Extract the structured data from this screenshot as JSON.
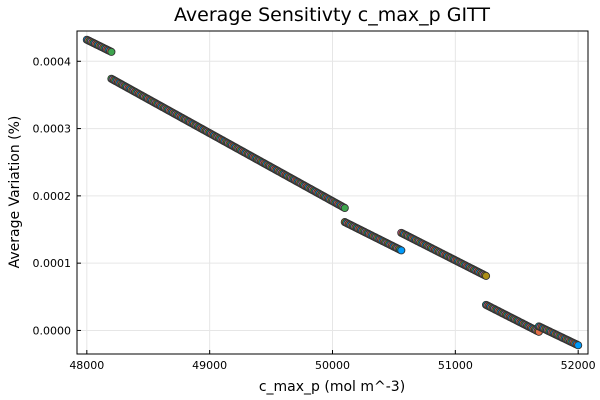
{
  "chart_data": {
    "type": "scatter",
    "title": "Average Sensitivty c_max_p GITT",
    "xlabel": "c_max_p (mol m^-3)",
    "ylabel": "Average Variation (%)",
    "xlim": [
      47920,
      52080
    ],
    "ylim": [
      -3.5e-05,
      0.000445
    ],
    "xticks": [
      48000,
      49000,
      50000,
      51000,
      52000
    ],
    "xtick_labels": [
      "48000",
      "49000",
      "50000",
      "51000",
      "52000"
    ],
    "yticks": [
      0.0,
      0.0001,
      0.0002,
      0.0003,
      0.0004
    ],
    "ytick_labels": [
      "0.0000",
      "0.0001",
      "0.0002",
      "0.0003",
      "0.0004"
    ],
    "grid": true,
    "legend": "none",
    "series_colors": [
      "#009afa",
      "#e36f47",
      "#3ea44e",
      "#c271d2",
      "#ac8e18",
      "#00aaae",
      "#ed5e93",
      "#c68225"
    ],
    "marker_edge_color": "#333333",
    "segments": [
      {
        "x": [
          48000,
          48200
        ],
        "y": [
          0.000432,
          0.000414
        ],
        "end_color": "#3ea44e"
      },
      {
        "x": [
          48200,
          50100
        ],
        "y": [
          0.000374,
          0.000182
        ],
        "end_color": "#3ea44e"
      },
      {
        "x": [
          50100,
          50560
        ],
        "y": [
          0.000161,
          0.000119
        ],
        "end_color": "#009afa"
      },
      {
        "x": [
          50560,
          51250
        ],
        "y": [
          0.000145,
          8.1e-05
        ],
        "end_color": "#ac8e18"
      },
      {
        "x": [
          51250,
          51680
        ],
        "y": [
          3.8e-05,
          -2e-06
        ],
        "end_color": "#e36f47"
      },
      {
        "x": [
          51680,
          52000
        ],
        "y": [
          6e-06,
          -2.2e-05
        ],
        "end_color": "#009afa"
      }
    ]
  }
}
